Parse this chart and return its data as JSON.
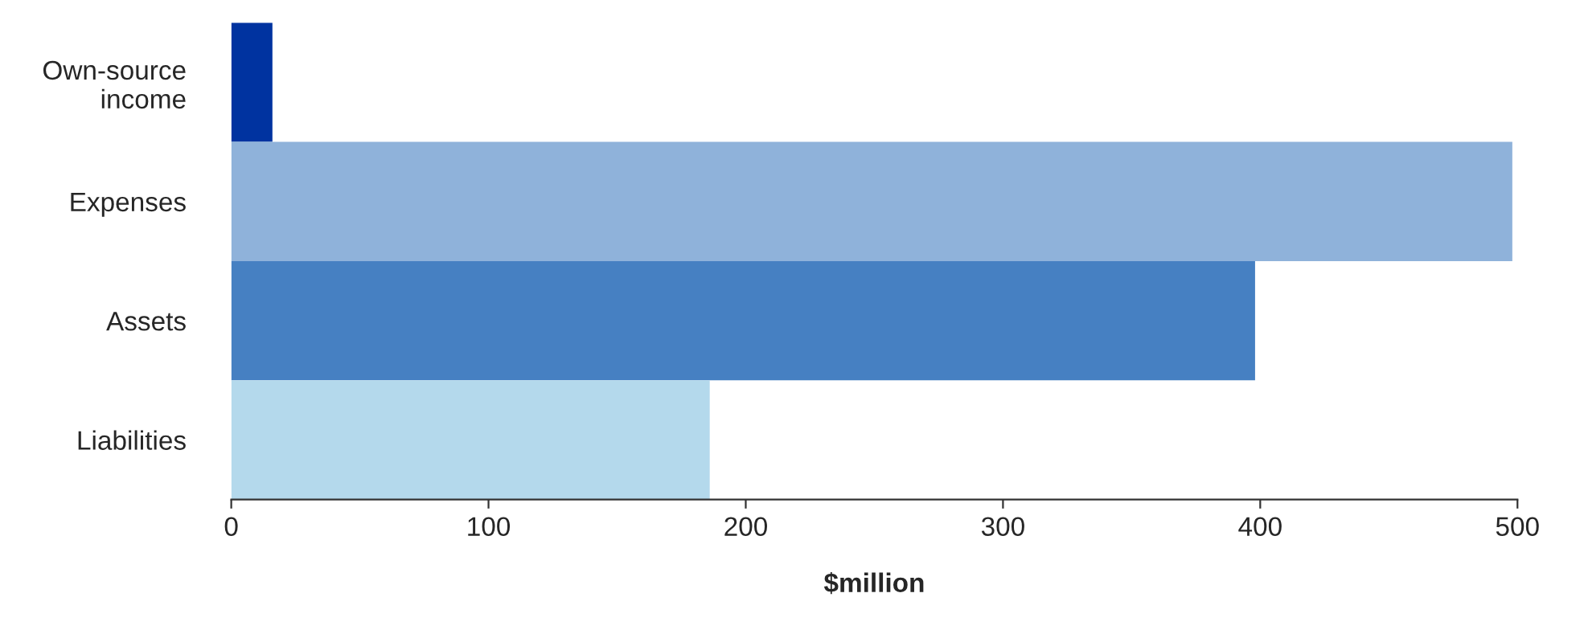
{
  "chart_data": {
    "type": "bar",
    "orientation": "horizontal",
    "xlabel": "$million",
    "categories": [
      "Own-source\nincome",
      "Expenses",
      "Assets",
      "Liabilities"
    ],
    "values": [
      16,
      498,
      398,
      186
    ],
    "colors": [
      "#0033a0",
      "#8fb2da",
      "#4680c2",
      "#b4d9ec"
    ],
    "xlim": [
      0,
      500
    ],
    "xticks": [
      0,
      100,
      200,
      300,
      400,
      500
    ],
    "grid": false
  }
}
